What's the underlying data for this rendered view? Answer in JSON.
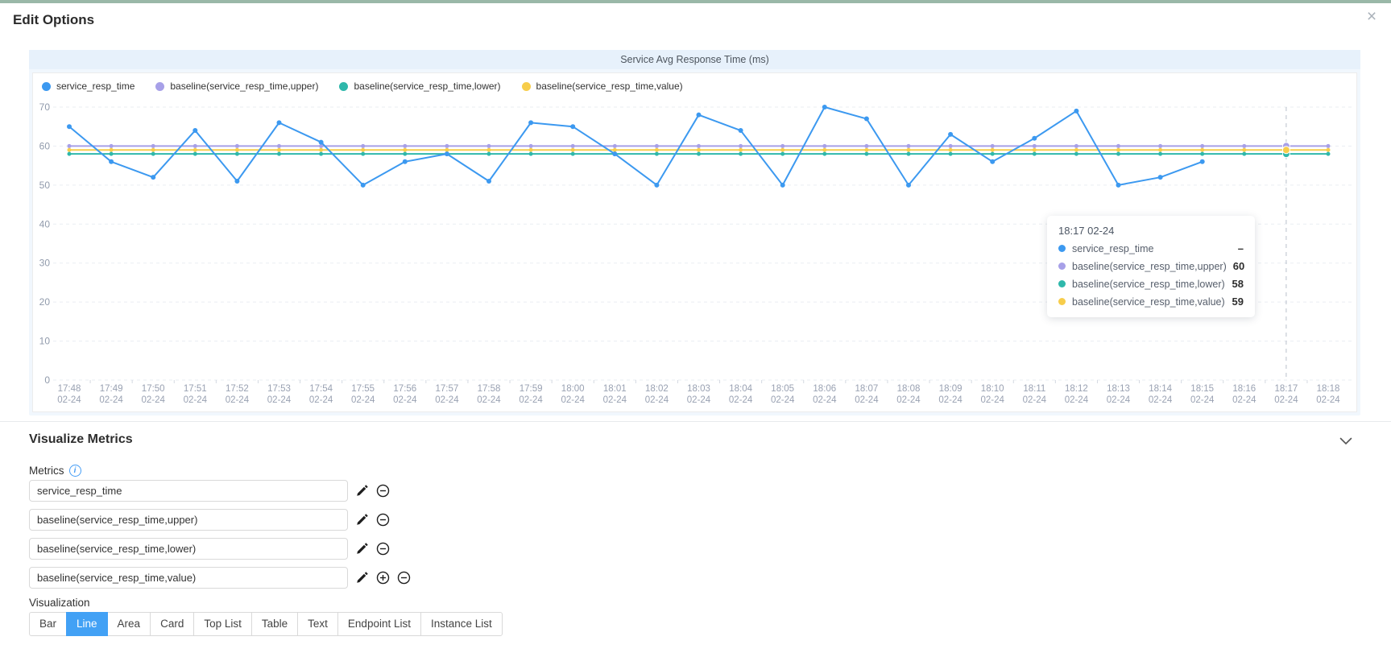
{
  "page": {
    "title": "Edit Options",
    "close_icon": "×",
    "top_bar_color": "#9ab8a8"
  },
  "chart_panel": {
    "title": "Service Avg Response Time (ms)",
    "legend": [
      {
        "label": "service_resp_time",
        "color": "#3c99f0"
      },
      {
        "label": "baseline(service_resp_time,upper)",
        "color": "#a7a0e8"
      },
      {
        "label": "baseline(service_resp_time,lower)",
        "color": "#2fb8ab"
      },
      {
        "label": "baseline(service_resp_time,value)",
        "color": "#f7cd4b"
      }
    ],
    "tooltip": {
      "title": "18:17 02-24",
      "rows": [
        {
          "label": "service_resp_time",
          "value": "–",
          "color": "#3c99f0"
        },
        {
          "label": "baseline(service_resp_time,upper)",
          "value": "60",
          "color": "#a7a0e8"
        },
        {
          "label": "baseline(service_resp_time,lower)",
          "value": "58",
          "color": "#2fb8ab"
        },
        {
          "label": "baseline(service_resp_time,value)",
          "value": "59",
          "color": "#f7cd4b"
        }
      ]
    }
  },
  "chart_data": {
    "type": "line",
    "title": "Service Avg Response Time (ms)",
    "x_times": [
      "17:48",
      "17:49",
      "17:50",
      "17:51",
      "17:52",
      "17:53",
      "17:54",
      "17:55",
      "17:56",
      "17:57",
      "17:58",
      "17:59",
      "18:00",
      "18:01",
      "18:02",
      "18:03",
      "18:04",
      "18:05",
      "18:06",
      "18:07",
      "18:08",
      "18:09",
      "18:10",
      "18:11",
      "18:12",
      "18:13",
      "18:14",
      "18:15",
      "18:16",
      "18:17",
      "18:18"
    ],
    "x_date": "02-24",
    "ylim": [
      0,
      70
    ],
    "y_ticks": [
      0,
      10,
      20,
      30,
      40,
      50,
      60,
      70
    ],
    "grid": "horizontal-dashed",
    "legend_position": "top-left",
    "axis_pointer_index": 29,
    "series": [
      {
        "name": "service_resp_time",
        "color": "#3c99f0",
        "values": [
          65,
          56,
          52,
          64,
          51,
          66,
          61,
          50,
          56,
          58,
          51,
          66,
          65,
          58,
          50,
          68,
          64,
          50,
          70,
          67,
          50,
          63,
          56,
          62,
          69,
          50,
          52,
          56,
          null,
          null,
          null
        ]
      },
      {
        "name": "baseline(service_resp_time,upper)",
        "color": "#a7a0e8",
        "values": [
          60,
          60,
          60,
          60,
          60,
          60,
          60,
          60,
          60,
          60,
          60,
          60,
          60,
          60,
          60,
          60,
          60,
          60,
          60,
          60,
          60,
          60,
          60,
          60,
          60,
          60,
          60,
          60,
          60,
          60,
          60
        ]
      },
      {
        "name": "baseline(service_resp_time,lower)",
        "color": "#2fb8ab",
        "values": [
          58,
          58,
          58,
          58,
          58,
          58,
          58,
          58,
          58,
          58,
          58,
          58,
          58,
          58,
          58,
          58,
          58,
          58,
          58,
          58,
          58,
          58,
          58,
          58,
          58,
          58,
          58,
          58,
          58,
          58,
          58
        ]
      },
      {
        "name": "baseline(service_resp_time,value)",
        "color": "#f7cd4b",
        "values": [
          59,
          59,
          59,
          59,
          59,
          59,
          59,
          59,
          59,
          59,
          59,
          59,
          59,
          59,
          59,
          59,
          59,
          59,
          59,
          59,
          59,
          59,
          59,
          59,
          59,
          59,
          59,
          59,
          59,
          59,
          59
        ]
      }
    ]
  },
  "visualize_metrics": {
    "heading": "Visualize Metrics",
    "metrics_label": "Metrics",
    "metrics": [
      {
        "value": "service_resp_time"
      },
      {
        "value": "baseline(service_resp_time,upper)"
      },
      {
        "value": "baseline(service_resp_time,lower)"
      },
      {
        "value": "baseline(service_resp_time,value)"
      }
    ],
    "visualization_label": "Visualization",
    "visualization_options": [
      "Bar",
      "Line",
      "Area",
      "Card",
      "Top List",
      "Table",
      "Text",
      "Endpoint List",
      "Instance List"
    ],
    "selected_visualization": "Line"
  }
}
